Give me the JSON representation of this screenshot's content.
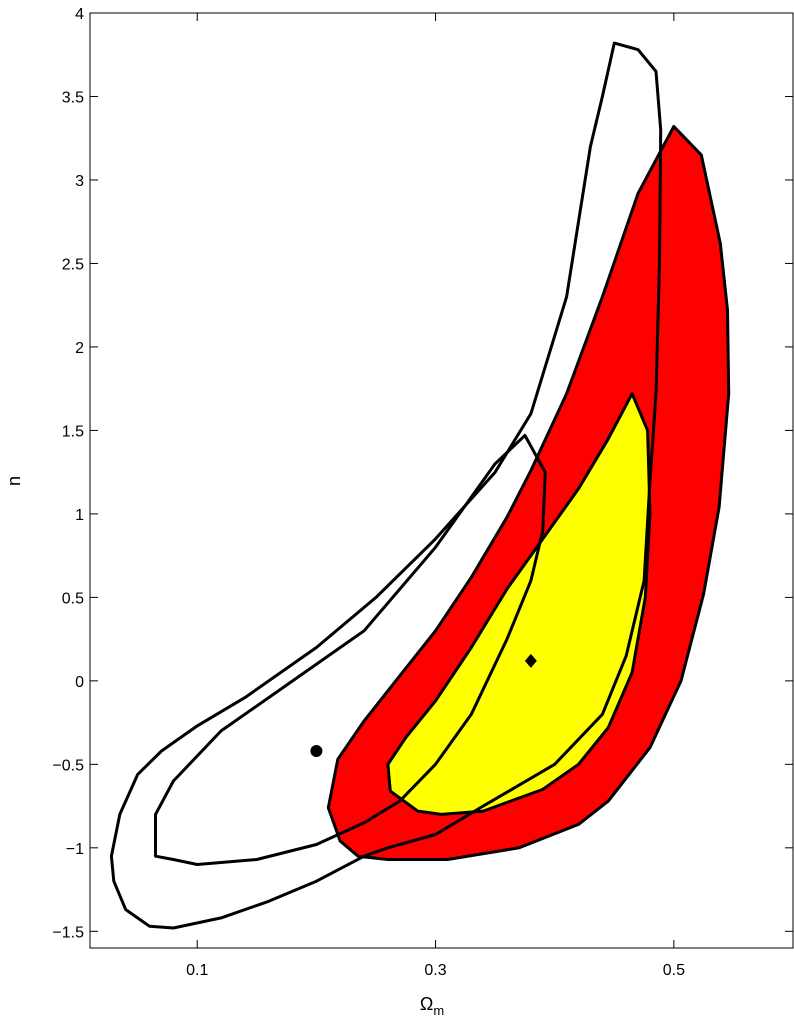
{
  "chart_data": {
    "type": "contour",
    "xlabel": "Ω",
    "xlabel_subscript": "m",
    "ylabel": "n",
    "xlim": [
      0.01,
      0.6
    ],
    "ylim": [
      -1.6,
      4.0
    ],
    "x_ticks": [
      0.1,
      0.3,
      0.5
    ],
    "x_tick_labels": [
      "0.1",
      "0.3",
      "0.5"
    ],
    "y_ticks": [
      -1.5,
      -1,
      -0.5,
      0,
      0.5,
      1,
      1.5,
      2,
      2.5,
      3,
      3.5,
      4
    ],
    "y_tick_labels": [
      "−1.5",
      "−1",
      "−0.5",
      "0",
      "0.5",
      "1",
      "1.5",
      "2",
      "2.5",
      "3",
      "3.5",
      "4"
    ],
    "grid": false,
    "colors": {
      "outer_filled": "#ff0000",
      "inner_filled": "#ffff00",
      "open_contour_stroke": "#000000"
    },
    "series": [
      {
        "fill": "#ff0000",
        "points": [
          [
            0.5,
            3.32
          ],
          [
            0.523,
            3.15
          ],
          [
            0.539,
            2.62
          ],
          [
            0.545,
            2.22
          ],
          [
            0.546,
            1.72
          ],
          [
            0.538,
            1.04
          ],
          [
            0.525,
            0.52
          ],
          [
            0.506,
            0.0
          ],
          [
            0.48,
            -0.4
          ],
          [
            0.445,
            -0.72
          ],
          [
            0.42,
            -0.86
          ],
          [
            0.37,
            -1.0
          ],
          [
            0.31,
            -1.07
          ],
          [
            0.26,
            -1.07
          ],
          [
            0.235,
            -1.05
          ],
          [
            0.22,
            -0.96
          ],
          [
            0.21,
            -0.76
          ],
          [
            0.218,
            -0.47
          ],
          [
            0.24,
            -0.24
          ],
          [
            0.27,
            0.03
          ],
          [
            0.3,
            0.3
          ],
          [
            0.33,
            0.62
          ],
          [
            0.36,
            0.98
          ],
          [
            0.38,
            1.26
          ],
          [
            0.41,
            1.72
          ],
          [
            0.44,
            2.3
          ],
          [
            0.47,
            2.92
          ]
        ]
      },
      {
        "fill": "#ffff00",
        "points": [
          [
            0.465,
            1.72
          ],
          [
            0.478,
            1.5
          ],
          [
            0.48,
            1.0
          ],
          [
            0.476,
            0.5
          ],
          [
            0.465,
            0.05
          ],
          [
            0.445,
            -0.28
          ],
          [
            0.42,
            -0.5
          ],
          [
            0.39,
            -0.65
          ],
          [
            0.34,
            -0.78
          ],
          [
            0.305,
            -0.8
          ],
          [
            0.285,
            -0.78
          ],
          [
            0.262,
            -0.66
          ],
          [
            0.26,
            -0.5
          ],
          [
            0.275,
            -0.34
          ],
          [
            0.3,
            -0.12
          ],
          [
            0.33,
            0.2
          ],
          [
            0.36,
            0.55
          ],
          [
            0.39,
            0.85
          ],
          [
            0.42,
            1.15
          ],
          [
            0.445,
            1.45
          ]
        ]
      },
      {
        "fill": "none",
        "points": [
          [
            0.45,
            3.82
          ],
          [
            0.47,
            3.78
          ],
          [
            0.485,
            3.65
          ],
          [
            0.489,
            3.3
          ],
          [
            0.488,
            2.5
          ],
          [
            0.485,
            1.72
          ],
          [
            0.48,
            1.2
          ],
          [
            0.475,
            0.6
          ],
          [
            0.46,
            0.15
          ],
          [
            0.44,
            -0.2
          ],
          [
            0.4,
            -0.5
          ],
          [
            0.34,
            -0.75
          ],
          [
            0.3,
            -0.92
          ],
          [
            0.26,
            -1.0
          ],
          [
            0.24,
            -1.05
          ],
          [
            0.2,
            -1.2
          ],
          [
            0.16,
            -1.32
          ],
          [
            0.12,
            -1.42
          ],
          [
            0.08,
            -1.48
          ],
          [
            0.06,
            -1.47
          ],
          [
            0.04,
            -1.37
          ],
          [
            0.03,
            -1.2
          ],
          [
            0.028,
            -1.05
          ],
          [
            0.035,
            -0.8
          ],
          [
            0.05,
            -0.56
          ],
          [
            0.07,
            -0.42
          ],
          [
            0.1,
            -0.27
          ],
          [
            0.14,
            -0.1
          ],
          [
            0.2,
            0.2
          ],
          [
            0.25,
            0.5
          ],
          [
            0.3,
            0.85
          ],
          [
            0.35,
            1.25
          ],
          [
            0.38,
            1.6
          ],
          [
            0.41,
            2.3
          ],
          [
            0.43,
            3.2
          ],
          [
            0.44,
            3.5
          ]
        ]
      },
      {
        "fill": "none",
        "points": [
          [
            0.375,
            1.47
          ],
          [
            0.392,
            1.25
          ],
          [
            0.39,
            0.9
          ],
          [
            0.38,
            0.6
          ],
          [
            0.36,
            0.25
          ],
          [
            0.33,
            -0.2
          ],
          [
            0.3,
            -0.5
          ],
          [
            0.27,
            -0.72
          ],
          [
            0.24,
            -0.85
          ],
          [
            0.2,
            -0.98
          ],
          [
            0.15,
            -1.07
          ],
          [
            0.1,
            -1.1
          ],
          [
            0.08,
            -1.07
          ],
          [
            0.065,
            -1.05
          ],
          [
            0.065,
            -0.8
          ],
          [
            0.08,
            -0.6
          ],
          [
            0.12,
            -0.3
          ],
          [
            0.18,
            0.0
          ],
          [
            0.24,
            0.3
          ],
          [
            0.3,
            0.8
          ],
          [
            0.35,
            1.3
          ]
        ]
      }
    ],
    "markers": [
      {
        "shape": "circle",
        "x": 0.2,
        "y": -0.42
      },
      {
        "shape": "diamond",
        "x": 0.38,
        "y": 0.12
      }
    ]
  }
}
